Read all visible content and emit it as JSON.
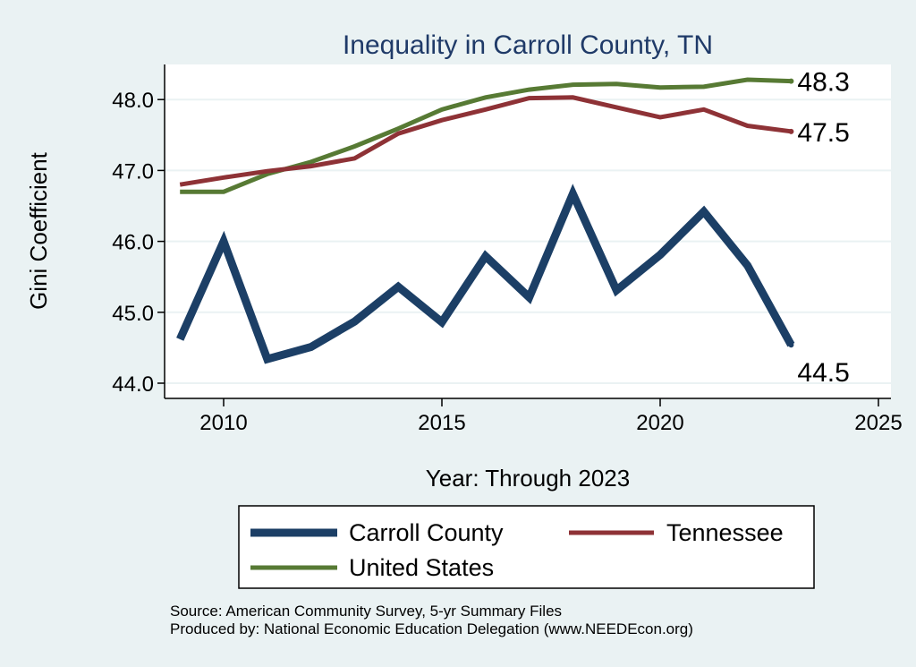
{
  "chart_data": {
    "type": "line",
    "title": "Inequality in Carroll County, TN",
    "xlabel": "Year: Through 2023",
    "ylabel": "Gini Coefficient",
    "xlim": [
      2008.7,
      2025
    ],
    "ylim": [
      43.8,
      48.5
    ],
    "x_ticks": [
      2010,
      2015,
      2020,
      2025
    ],
    "y_ticks": [
      44.0,
      45.0,
      46.0,
      47.0,
      48.0
    ],
    "y_tick_labels": [
      "44.0",
      "45.0",
      "46.0",
      "47.0",
      "48.0"
    ],
    "x": [
      2009,
      2010,
      2011,
      2012,
      2013,
      2014,
      2015,
      2016,
      2017,
      2018,
      2019,
      2020,
      2021,
      2022,
      2023
    ],
    "series": [
      {
        "name": "Carroll County",
        "color": "#1c3f66",
        "width": "thick",
        "values": [
          44.62,
          46.0,
          44.34,
          44.51,
          44.87,
          45.36,
          44.86,
          45.79,
          45.21,
          46.67,
          45.31,
          45.81,
          46.42,
          45.66,
          44.54
        ],
        "end_label": "44.5"
      },
      {
        "name": "Tennessee",
        "color": "#8e3236",
        "width": "thin",
        "values": [
          46.8,
          46.9,
          46.99,
          47.06,
          47.17,
          47.52,
          47.71,
          47.86,
          48.02,
          48.03,
          47.89,
          47.75,
          47.86,
          47.63,
          47.55
        ],
        "end_label": "47.5"
      },
      {
        "name": "United States",
        "color": "#577a34",
        "width": "thin",
        "values": [
          46.7,
          46.7,
          46.95,
          47.12,
          47.34,
          47.59,
          47.86,
          48.03,
          48.14,
          48.21,
          48.22,
          48.17,
          48.18,
          48.28,
          48.26
        ],
        "end_label": "48.3"
      }
    ],
    "legend": {
      "position": "bottom",
      "order": [
        "Carroll County",
        "Tennessee",
        "United States"
      ]
    },
    "grid": true
  },
  "source": {
    "line1": "Source: American Community Survey, 5-yr Summary Files",
    "line2": "Produced by: National Economic Education Delegation (www.NEEDEcon.org)"
  },
  "colors": {
    "background": "#eaf2f3",
    "plot_background": "#ffffff",
    "title": "#1f3a68",
    "grid": "#eaf2f3"
  }
}
